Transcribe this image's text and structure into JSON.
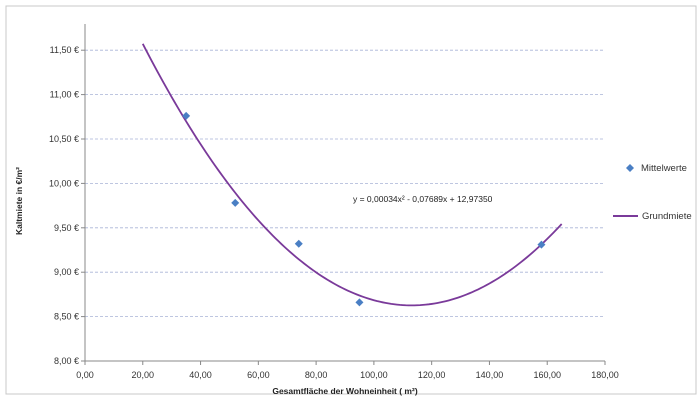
{
  "chart_data": {
    "type": "scatter",
    "xlabel": "Gesamtfläche der Wohneinheit ( m²)",
    "ylabel": "Kaltmiete in €/m²",
    "xlim": [
      0,
      180
    ],
    "ylim": [
      8.0,
      11.75
    ],
    "x_ticks": [
      "0,00",
      "20,00",
      "40,00",
      "60,00",
      "80,00",
      "100,00",
      "120,00",
      "140,00",
      "160,00",
      "180,00"
    ],
    "y_ticks": [
      "8,00 €",
      "8,50 €",
      "9,00 €",
      "9,50 €",
      "10,00 €",
      "10,50 €",
      "11,00 €",
      "11,50 €"
    ],
    "grid": "horizontal dashed",
    "legend_position": "right",
    "series": [
      {
        "name": "Mittelwerte",
        "kind": "points",
        "color": "#4a7fc4",
        "marker": "diamond",
        "x": [
          35,
          52,
          74,
          95,
          158
        ],
        "y": [
          10.76,
          9.78,
          9.32,
          8.66,
          9.31
        ]
      },
      {
        "name": "Grundmiete",
        "kind": "polynomial-trendline",
        "color": "#7a3a9a",
        "coefficients": [
          0.00034,
          -0.07689,
          12.9735
        ],
        "x_range": [
          20,
          165
        ]
      }
    ],
    "equation_label": "y = 0,00034x² - 0,07689x + 12,97350"
  }
}
